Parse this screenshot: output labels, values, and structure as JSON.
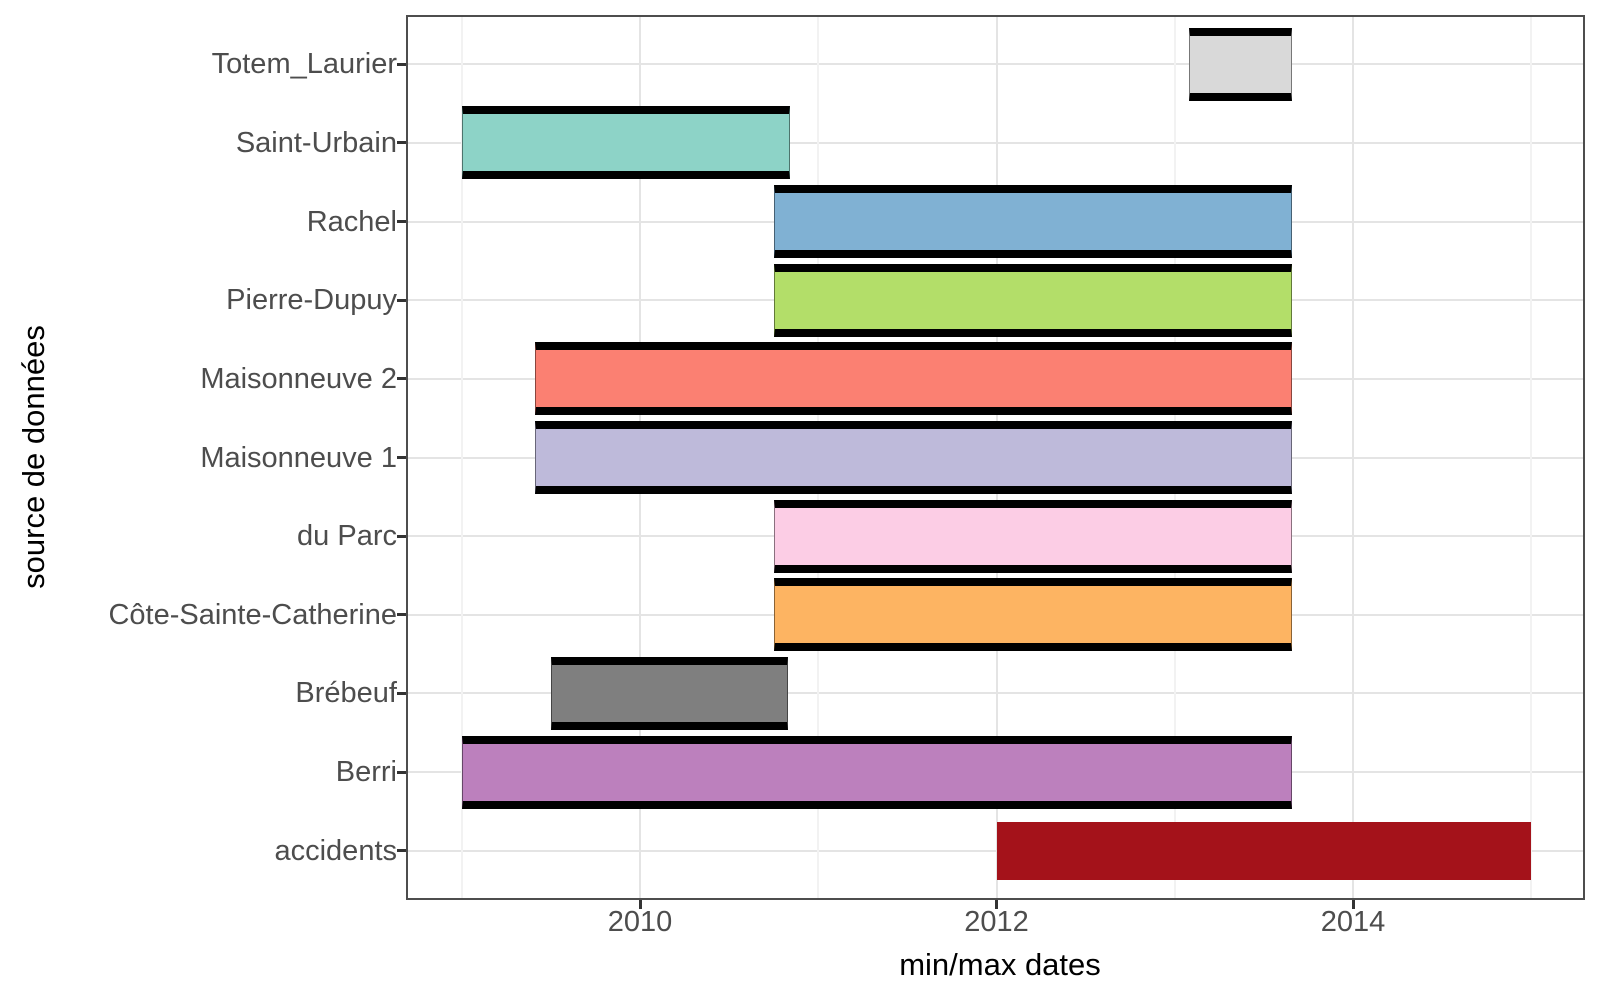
{
  "figure": {
    "x_axis_title": "min/max dates",
    "y_axis_title": "source de données"
  },
  "chart_data": {
    "type": "bar",
    "subtype": "horizontal_range_bars",
    "title": "",
    "xlabel": "min/max dates",
    "ylabel": "source de données",
    "x_tick_labels": [
      "2010",
      "2012",
      "2014"
    ],
    "x_ticks": [
      2010,
      2012,
      2014
    ],
    "x_minor_gridlines": [
      2009,
      2011,
      2013,
      2015
    ],
    "xlim": [
      2008.7,
      2015.29
    ],
    "grid": true,
    "legend": "none",
    "value_note": "min/max extent of each data source, in decimal years",
    "rows": [
      {
        "label": "Totem_Laurier",
        "min": 2013.08,
        "max": 2013.66,
        "fill": "#D9D9D9",
        "stroke": "#000000"
      },
      {
        "label": "Saint-Urbain",
        "min": 2009.0,
        "max": 2010.84,
        "fill": "#8DD3C7",
        "stroke": "#000000"
      },
      {
        "label": "Rachel",
        "min": 2010.75,
        "max": 2013.66,
        "fill": "#80B1D3",
        "stroke": "#000000"
      },
      {
        "label": "Pierre-Dupuy",
        "min": 2010.75,
        "max": 2013.66,
        "fill": "#B3DE69",
        "stroke": "#000000"
      },
      {
        "label": "Maisonneuve 2",
        "min": 2009.41,
        "max": 2013.66,
        "fill": "#FB8072",
        "stroke": "#000000"
      },
      {
        "label": "Maisonneuve 1",
        "min": 2009.41,
        "max": 2013.66,
        "fill": "#BEBADA",
        "stroke": "#000000"
      },
      {
        "label": "du Parc",
        "min": 2010.75,
        "max": 2013.66,
        "fill": "#FCCDE5",
        "stroke": "#000000"
      },
      {
        "label": "Côte-Sainte-Catherine",
        "min": 2010.75,
        "max": 2013.66,
        "fill": "#FDB462",
        "stroke": "#000000"
      },
      {
        "label": "Brébeuf",
        "min": 2009.5,
        "max": 2010.83,
        "fill": "#7F7F7F",
        "stroke": "#000000"
      },
      {
        "label": "Berri",
        "min": 2009.0,
        "max": 2013.66,
        "fill": "#BC80BD",
        "stroke": "#000000"
      },
      {
        "label": "accidents",
        "min": 2012.0,
        "max": 2015.0,
        "fill": "#A4121A",
        "stroke": null
      }
    ]
  },
  "style": {
    "plot_border_color": "#4d4d4d",
    "grid_major_color": "#e4e4e4",
    "grid_minor_color": "#f2f2f2",
    "tick_mark_color": "#333333",
    "tick_label_color": "#4d4d4d",
    "axis_title_color": "#000000",
    "bar_stroke_color": "#000000"
  }
}
